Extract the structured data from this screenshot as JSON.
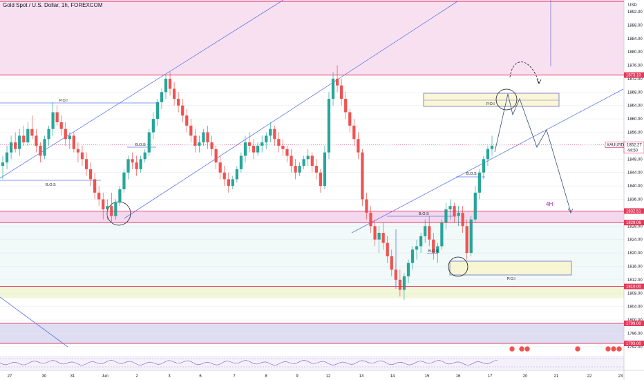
{
  "header": {
    "title": "Gold Spot / U.S. Dollar, 1h, FOREXCOM"
  },
  "chart_data": {
    "type": "candlestick",
    "symbol": "XAUUSD",
    "currency": "USD",
    "ylim": [
      1789.5,
      1895.5
    ],
    "y_ticks": [
      1792,
      1796,
      1800,
      1804,
      1808,
      1812,
      1816,
      1820,
      1824,
      1828,
      1836,
      1840,
      1844,
      1848,
      1852,
      1856,
      1860,
      1864,
      1868,
      1872,
      1876,
      1880,
      1884,
      1888,
      1892
    ],
    "y_tick_labels": [
      "1792.00",
      "1796.00",
      "1800.00",
      "1804.00",
      "1808.00",
      "1812.00",
      "1816.00",
      "1820.00",
      "1824.00",
      "1828.00",
      "1836.00",
      "1840.00",
      "1844.00",
      "1848.00",
      "1852.00",
      "1856.00",
      "1860.00",
      "1864.00",
      "1868.00",
      "1872.00",
      "1876.00",
      "1880.00",
      "1884.00",
      "1888.00",
      "1892.00"
    ],
    "x_labels": [
      "27",
      "30",
      "31",
      "Jun",
      "2",
      "3",
      "6",
      "7",
      "8",
      "9",
      "12",
      "13",
      "14",
      "15",
      "16",
      "17",
      "20",
      "21",
      "22",
      "23"
    ],
    "price_badges": [
      {
        "label": "1873.10",
        "value": 1873.1
      },
      {
        "label": "1832.51",
        "value": 1832.51
      },
      {
        "label": "1829.06",
        "value": 1829.06
      },
      {
        "label": "1810.00",
        "value": 1810.0
      },
      {
        "label": "1799.00",
        "value": 1799.0
      },
      {
        "label": "1793.00",
        "value": 1793.0
      }
    ],
    "current": {
      "symbol": "XAUUSD",
      "price": "1852.27",
      "countdown": "44:50",
      "value": 1852.27
    },
    "zones": [
      {
        "from": 1873.1,
        "to": 1895.5,
        "color": "#f5d5ec"
      },
      {
        "from": 1829.06,
        "to": 1832.51,
        "color": "#f2c9e8"
      },
      {
        "from": 1806.5,
        "to": 1810.0,
        "color": "#eef4c9"
      },
      {
        "from": 1793.0,
        "to": 1799.0,
        "color": "#d4d2ee"
      }
    ],
    "annotations": [
      "P.O.I",
      "B.O.S",
      "B.O.S",
      "P.O.I",
      "B.O.S",
      "B.O.S",
      "B.O.S",
      "P.O.I",
      "4H"
    ],
    "series": [
      {
        "name": "XAUUSD",
        "candles": [
          [
            1846,
            1849,
            1842,
            1847
          ],
          [
            1847,
            1852,
            1845,
            1850
          ],
          [
            1850,
            1855,
            1848,
            1853
          ],
          [
            1853,
            1856,
            1850,
            1851
          ],
          [
            1851,
            1857,
            1849,
            1855
          ],
          [
            1855,
            1858,
            1852,
            1853
          ],
          [
            1853,
            1859,
            1852,
            1857
          ],
          [
            1857,
            1861,
            1854,
            1855
          ],
          [
            1855,
            1857,
            1850,
            1852
          ],
          [
            1852,
            1853,
            1847,
            1849
          ],
          [
            1849,
            1855,
            1848,
            1854
          ],
          [
            1854,
            1858,
            1852,
            1857
          ],
          [
            1857,
            1865,
            1855,
            1862
          ],
          [
            1862,
            1864,
            1858,
            1859
          ],
          [
            1859,
            1861,
            1855,
            1857
          ],
          [
            1857,
            1859,
            1852,
            1854
          ],
          [
            1854,
            1856,
            1851,
            1855
          ],
          [
            1855,
            1856,
            1850,
            1851
          ],
          [
            1851,
            1853,
            1847,
            1850
          ],
          [
            1850,
            1852,
            1846,
            1848
          ],
          [
            1848,
            1850,
            1843,
            1845
          ],
          [
            1845,
            1847,
            1840,
            1842
          ],
          [
            1842,
            1844,
            1836,
            1838
          ],
          [
            1838,
            1840,
            1834,
            1836
          ],
          [
            1836,
            1838,
            1830,
            1833
          ],
          [
            1833,
            1836,
            1830,
            1834
          ],
          [
            1834,
            1838,
            1829,
            1831
          ],
          [
            1831,
            1836,
            1830,
            1835
          ],
          [
            1835,
            1840,
            1834,
            1839
          ],
          [
            1839,
            1845,
            1838,
            1844
          ],
          [
            1844,
            1849,
            1842,
            1848
          ],
          [
            1848,
            1850,
            1845,
            1847
          ],
          [
            1847,
            1849,
            1843,
            1845
          ],
          [
            1845,
            1849,
            1844,
            1848
          ],
          [
            1848,
            1851,
            1847,
            1850
          ],
          [
            1850,
            1857,
            1849,
            1856
          ],
          [
            1856,
            1862,
            1854,
            1860
          ],
          [
            1860,
            1866,
            1858,
            1865
          ],
          [
            1865,
            1869,
            1863,
            1868
          ],
          [
            1868,
            1873,
            1866,
            1872
          ],
          [
            1872,
            1874,
            1867,
            1869
          ],
          [
            1869,
            1871,
            1864,
            1866
          ],
          [
            1866,
            1868,
            1862,
            1864
          ],
          [
            1864,
            1866,
            1859,
            1861
          ],
          [
            1861,
            1863,
            1856,
            1858
          ],
          [
            1858,
            1860,
            1853,
            1855
          ],
          [
            1855,
            1857,
            1850,
            1852
          ],
          [
            1852,
            1855,
            1850,
            1853
          ],
          [
            1853,
            1857,
            1852,
            1856
          ],
          [
            1856,
            1858,
            1851,
            1853
          ],
          [
            1853,
            1855,
            1849,
            1851
          ],
          [
            1851,
            1852,
            1845,
            1847
          ],
          [
            1847,
            1849,
            1842,
            1844
          ],
          [
            1844,
            1846,
            1840,
            1842
          ],
          [
            1842,
            1844,
            1838,
            1840
          ],
          [
            1840,
            1843,
            1839,
            1842
          ],
          [
            1842,
            1846,
            1841,
            1845
          ],
          [
            1845,
            1850,
            1844,
            1849
          ],
          [
            1849,
            1855,
            1847,
            1853
          ],
          [
            1853,
            1856,
            1850,
            1852
          ],
          [
            1852,
            1854,
            1848,
            1850
          ],
          [
            1850,
            1853,
            1849,
            1852
          ],
          [
            1852,
            1855,
            1850,
            1853
          ],
          [
            1853,
            1856,
            1851,
            1855
          ],
          [
            1855,
            1859,
            1853,
            1857
          ],
          [
            1857,
            1858,
            1852,
            1854
          ],
          [
            1854,
            1856,
            1850,
            1852
          ],
          [
            1852,
            1854,
            1849,
            1851
          ],
          [
            1851,
            1852,
            1847,
            1849
          ],
          [
            1849,
            1851,
            1844,
            1846
          ],
          [
            1846,
            1848,
            1842,
            1844
          ],
          [
            1844,
            1847,
            1843,
            1846
          ],
          [
            1846,
            1849,
            1845,
            1848
          ],
          [
            1848,
            1851,
            1846,
            1849
          ],
          [
            1849,
            1850,
            1844,
            1846
          ],
          [
            1846,
            1848,
            1842,
            1844
          ],
          [
            1844,
            1845,
            1838,
            1840
          ],
          [
            1840,
            1852,
            1839,
            1850
          ],
          [
            1850,
            1868,
            1848,
            1866
          ],
          [
            1866,
            1874,
            1864,
            1872
          ],
          [
            1872,
            1876,
            1868,
            1870
          ],
          [
            1870,
            1872,
            1864,
            1866
          ],
          [
            1866,
            1868,
            1860,
            1862
          ],
          [
            1862,
            1863,
            1856,
            1858
          ],
          [
            1858,
            1860,
            1852,
            1854
          ],
          [
            1854,
            1856,
            1848,
            1850
          ],
          [
            1850,
            1851,
            1834,
            1836
          ],
          [
            1836,
            1838,
            1830,
            1832
          ],
          [
            1832,
            1834,
            1826,
            1828
          ],
          [
            1828,
            1830,
            1822,
            1824
          ],
          [
            1824,
            1828,
            1820,
            1826
          ],
          [
            1826,
            1829,
            1821,
            1823
          ],
          [
            1823,
            1825,
            1817,
            1819
          ],
          [
            1819,
            1821,
            1813,
            1815
          ],
          [
            1815,
            1817,
            1810,
            1812
          ],
          [
            1812,
            1815,
            1807,
            1809
          ],
          [
            1809,
            1814,
            1806,
            1813
          ],
          [
            1813,
            1818,
            1811,
            1817
          ],
          [
            1817,
            1822,
            1815,
            1821
          ],
          [
            1821,
            1824,
            1818,
            1822
          ],
          [
            1822,
            1826,
            1820,
            1825
          ],
          [
            1825,
            1830,
            1823,
            1828
          ],
          [
            1828,
            1831,
            1822,
            1824
          ],
          [
            1824,
            1826,
            1818,
            1820
          ],
          [
            1820,
            1823,
            1817,
            1822
          ],
          [
            1822,
            1830,
            1821,
            1829
          ],
          [
            1829,
            1835,
            1827,
            1833
          ],
          [
            1833,
            1836,
            1830,
            1834
          ],
          [
            1834,
            1835,
            1829,
            1831
          ],
          [
            1831,
            1834,
            1828,
            1832
          ],
          [
            1832,
            1834,
            1826,
            1828
          ],
          [
            1828,
            1830,
            1818,
            1820
          ],
          [
            1820,
            1831,
            1819,
            1830
          ],
          [
            1830,
            1840,
            1829,
            1838
          ],
          [
            1838,
            1845,
            1836,
            1844
          ],
          [
            1844,
            1849,
            1842,
            1848
          ],
          [
            1848,
            1852,
            1846,
            1851
          ],
          [
            1851,
            1855,
            1849,
            1852
          ]
        ]
      }
    ]
  }
}
